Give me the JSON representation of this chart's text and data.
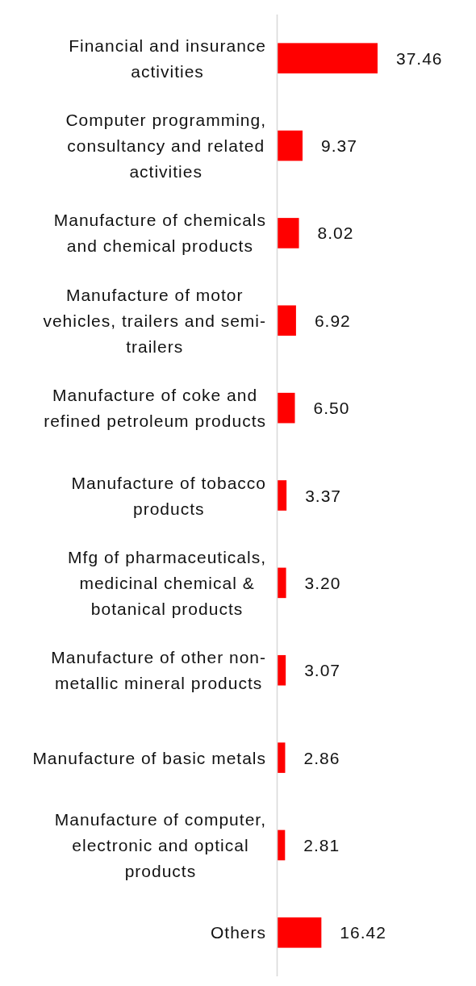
{
  "chart_data": {
    "type": "bar",
    "orientation": "horizontal",
    "categories": [
      "Financial and insurance activities",
      "Computer programming, consultancy and related activities",
      "Manufacture of chemicals and chemical products",
      "Manufacture of motor vehicles, trailers and semi-trailers",
      "Manufacture of coke and refined petroleum products",
      "Manufacture of tobacco products",
      "Mfg of pharmaceuticals, medicinal chemical & botanical products",
      "Manufacture of other non-metallic mineral products",
      "Manufacture of basic metals",
      "Manufacture of computer, electronic and optical products",
      "Others"
    ],
    "values": [
      37.46,
      9.37,
      8.02,
      6.92,
      6.5,
      3.37,
      3.2,
      3.07,
      2.86,
      2.81,
      16.42
    ],
    "value_labels": [
      "37.46",
      "9.37",
      "8.02",
      "6.92",
      "6.50",
      "3.37",
      "3.20",
      "3.07",
      "2.86",
      "2.81",
      "16.42"
    ],
    "color": "#ff0000"
  }
}
